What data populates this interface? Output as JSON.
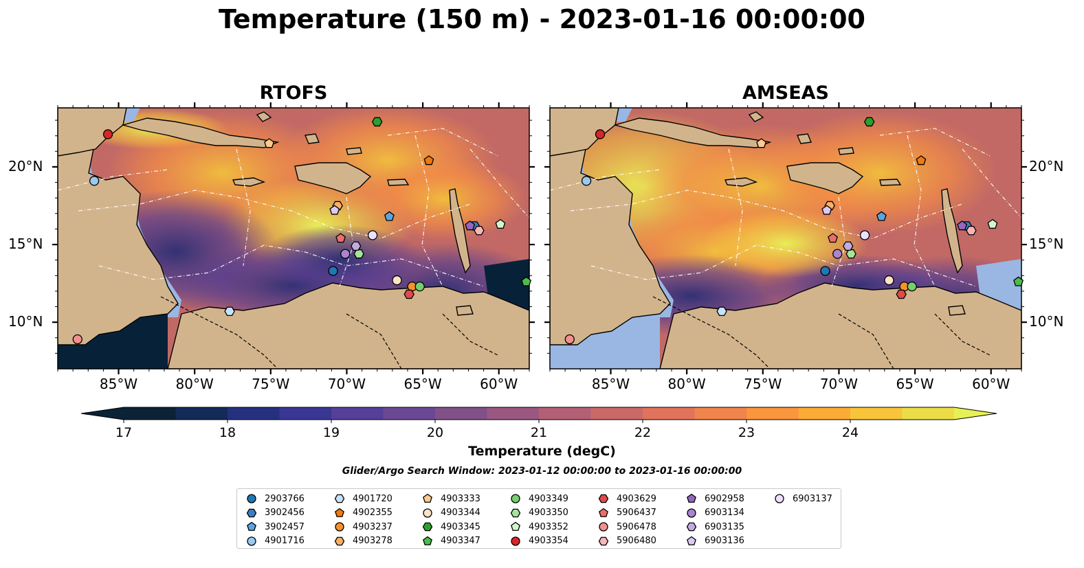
{
  "title": "Temperature (150 m) - 2023-01-16 00:00:00",
  "panels": [
    {
      "title": "RTOFS"
    },
    {
      "title": "AMSEAS"
    }
  ],
  "axes": {
    "x_ticks": [
      "85°W",
      "80°W",
      "75°W",
      "70°W",
      "65°W",
      "60°W"
    ],
    "y_ticks": [
      "20°N",
      "15°N",
      "10°N"
    ]
  },
  "colorbar": {
    "label": "Temperature (degC)",
    "ticks": [
      "17",
      "18",
      "19",
      "20",
      "21",
      "22",
      "23",
      "24"
    ],
    "colors": [
      "#0b2237",
      "#142a57",
      "#25317f",
      "#3a3694",
      "#553f98",
      "#6b4893",
      "#825089",
      "#9a5880",
      "#b36076",
      "#cb6969",
      "#e1735c",
      "#f0844c",
      "#f9963e",
      "#fcac36",
      "#f8c53a",
      "#ecdd48",
      "#e6f155"
    ]
  },
  "colors": {
    "land": "#d2b48c",
    "shelf": "#9ab7e3",
    "deep": "#072238"
  },
  "search_window": "Glider/Argo Search Window: 2023-01-12 00:00:00 to 2023-01-16 00:00:00",
  "chart_data": {
    "type": "heatmap",
    "variable": "Temperature (degC)",
    "depth": "150 m",
    "time": "2023-01-16 00:00:00",
    "lon_range": [
      -89,
      -58
    ],
    "lat_range": [
      7,
      23.8
    ],
    "color_range": [
      17,
      24.5
    ],
    "panels": [
      "RTOFS",
      "AMSEAS"
    ],
    "floats": [
      {
        "id": "2903766",
        "marker": "circle",
        "color": "#1f77b4",
        "lon": -70.9,
        "lat": 13.3
      },
      {
        "id": "3902456",
        "marker": "hexagon",
        "color": "#3a7fc1",
        "lon": -61.6,
        "lat": 16.2
      },
      {
        "id": "3902457",
        "marker": "pentagon",
        "color": "#5aa5df",
        "lon": -67.2,
        "lat": 16.8
      },
      {
        "id": "4901716",
        "marker": "circle",
        "color": "#9cc8ef",
        "lon": -86.6,
        "lat": 19.1
      },
      {
        "id": "4901720",
        "marker": "hexagon",
        "color": "#c7e3fb",
        "lon": -77.7,
        "lat": 10.7
      },
      {
        "id": "4902355",
        "marker": "pentagon",
        "color": "#f07a10",
        "lon": -64.6,
        "lat": 20.4
      },
      {
        "id": "4903237",
        "marker": "circle",
        "color": "#f5922a",
        "lon": -65.7,
        "lat": 12.3
      },
      {
        "id": "4903278",
        "marker": "hexagon",
        "color": "#fbb066",
        "lon": -70.6,
        "lat": 17.5
      },
      {
        "id": "4903333",
        "marker": "pentagon",
        "color": "#fcc98f",
        "lon": -75.1,
        "lat": 21.5
      },
      {
        "id": "4903344",
        "marker": "circle",
        "color": "#fde3c6",
        "lon": -66.7,
        "lat": 12.7
      },
      {
        "id": "4903345",
        "marker": "hexagon",
        "color": "#2ca02c",
        "lon": -68.0,
        "lat": 22.9
      },
      {
        "id": "4903347",
        "marker": "pentagon",
        "color": "#4dbb4d",
        "lon": -58.2,
        "lat": 12.6
      },
      {
        "id": "4903349",
        "marker": "circle",
        "color": "#74cf6e",
        "lon": -65.2,
        "lat": 12.3
      },
      {
        "id": "4903350",
        "marker": "hexagon",
        "color": "#a4e49b",
        "lon": -69.2,
        "lat": 14.4
      },
      {
        "id": "4903352",
        "marker": "pentagon",
        "color": "#d3f7cd",
        "lon": -59.9,
        "lat": 16.3
      },
      {
        "id": "4903354",
        "marker": "circle",
        "color": "#d62728",
        "lon": -85.7,
        "lat": 22.1
      },
      {
        "id": "4903629",
        "marker": "hexagon",
        "color": "#e04a4a",
        "lon": -65.9,
        "lat": 11.8
      },
      {
        "id": "5906437",
        "marker": "pentagon",
        "color": "#ea6d6d",
        "lon": -70.4,
        "lat": 15.4
      },
      {
        "id": "5906478",
        "marker": "circle",
        "color": "#f29090",
        "lon": -87.7,
        "lat": 8.9
      },
      {
        "id": "5906480",
        "marker": "hexagon",
        "color": "#f8b6b6",
        "lon": -61.3,
        "lat": 15.9
      },
      {
        "id": "6902958",
        "marker": "pentagon",
        "color": "#9467bd",
        "lon": -61.9,
        "lat": 16.2
      },
      {
        "id": "6903134",
        "marker": "circle",
        "color": "#a985d0",
        "lon": -70.1,
        "lat": 14.4
      },
      {
        "id": "6903135",
        "marker": "hexagon",
        "color": "#c5a9e3",
        "lon": -69.4,
        "lat": 14.9
      },
      {
        "id": "6903136",
        "marker": "pentagon",
        "color": "#dcc9f1",
        "lon": -70.8,
        "lat": 17.2
      },
      {
        "id": "6903137",
        "marker": "circle",
        "color": "#ece1fb",
        "lon": -68.3,
        "lat": 15.6
      }
    ]
  }
}
